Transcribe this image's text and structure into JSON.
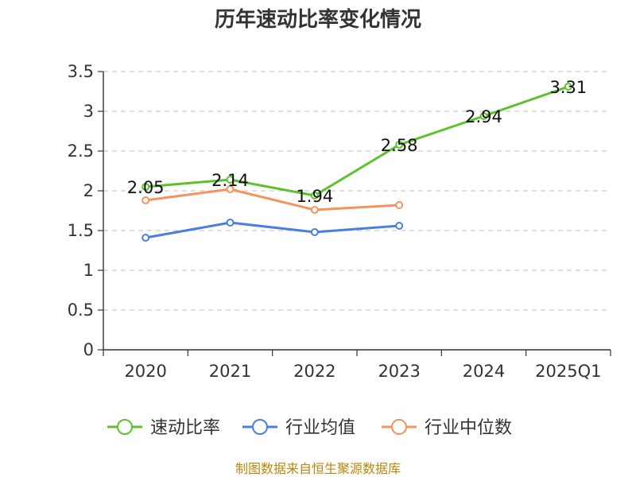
{
  "chart_data": {
    "type": "line",
    "title": "历年速动比率变化情况",
    "categories": [
      "2020",
      "2021",
      "2022",
      "2023",
      "2024",
      "2025Q1"
    ],
    "ylim": [
      0,
      3.5
    ],
    "yticks": [
      "0",
      "0.5",
      "1",
      "1.5",
      "2",
      "2.5",
      "3",
      "3.5"
    ],
    "grid": true,
    "legend_position": "bottom",
    "series": [
      {
        "name": "速动比率",
        "color": "#5cc22c",
        "values": [
          2.05,
          2.14,
          1.94,
          2.58,
          2.94,
          3.31
        ],
        "labels": [
          "2.05",
          "2.14",
          "1.94",
          "2.58",
          "2.94",
          "3.31"
        ]
      },
      {
        "name": "行业均值",
        "color": "#4a7fe0",
        "values": [
          1.41,
          1.6,
          1.48,
          1.56,
          null,
          null
        ]
      },
      {
        "name": "行业中位数",
        "color": "#f5935c",
        "values": [
          1.88,
          2.02,
          1.76,
          1.82,
          null,
          null
        ]
      }
    ]
  },
  "footer": "制图数据来自恒生聚源数据库"
}
